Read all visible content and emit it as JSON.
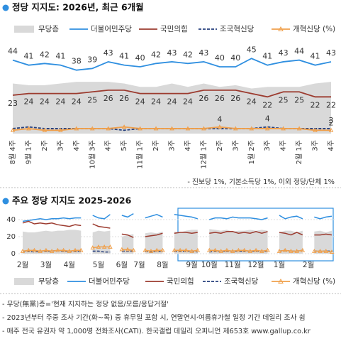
{
  "chart_data": [
    {
      "type": "line",
      "title": "정당 지지도: 2026년, 최근 6개월",
      "categories": [
        "8월 4주",
        "9월 1주",
        "2주",
        "3주",
        "4주",
        "10월 3주",
        "4주",
        "5주",
        "11월 1주",
        "2주",
        "3주",
        "4주",
        "12월 1주",
        "2주",
        "3주",
        "1월 2주",
        "3주",
        "4주",
        "2월 1주",
        "3주",
        "4주"
      ],
      "ylim": [
        0,
        50
      ],
      "series": [
        {
          "name": "무당층",
          "color": "#d9d9d9",
          "style": "area",
          "values": [
            30,
            29,
            29,
            30,
            31,
            31,
            31,
            30,
            28,
            28,
            30,
            28,
            30,
            28,
            29,
            27,
            28,
            28,
            28,
            30,
            31
          ]
        },
        {
          "name": "더불어민주당",
          "color": "#2f8fe0",
          "style": "line",
          "data_labels": true,
          "values": [
            44,
            41,
            42,
            41,
            38,
            39,
            43,
            41,
            40,
            42,
            43,
            42,
            43,
            40,
            40,
            45,
            41,
            43,
            44,
            41,
            43
          ]
        },
        {
          "name": "국민의힘",
          "color": "#9c3b2f",
          "style": "line",
          "data_labels": true,
          "values": [
            23,
            24,
            24,
            24,
            24,
            25,
            26,
            26,
            24,
            24,
            24,
            24,
            26,
            26,
            26,
            24,
            22,
            25,
            25,
            22,
            22
          ]
        },
        {
          "name": "조국혁신당",
          "color": "#263f7c",
          "style": "dashed",
          "values": [
            3,
            4,
            3,
            3,
            3,
            3,
            3,
            2,
            3,
            3,
            3,
            3,
            3,
            3,
            3,
            3,
            4,
            3,
            3,
            3,
            3
          ],
          "value_labels": [
            null,
            null,
            null,
            null,
            null,
            null,
            null,
            null,
            null,
            null,
            null,
            null,
            null,
            null,
            null,
            null,
            "4",
            null,
            null,
            null,
            "3"
          ]
        },
        {
          "name": "개혁신당 (%)",
          "color": "#f0a04b",
          "style": "triangle",
          "values": [
            2,
            3,
            2,
            2,
            3,
            3,
            3,
            4,
            3,
            3,
            3,
            3,
            3,
            4,
            3,
            3,
            3,
            3,
            3,
            2,
            2
          ],
          "value_labels": [
            null,
            null,
            null,
            null,
            null,
            null,
            null,
            null,
            null,
            null,
            null,
            null,
            null,
            "4",
            null,
            null,
            null,
            null,
            null,
            null,
            "2"
          ]
        }
      ],
      "note": "- 진보당 1%, 기본소득당 1%, 이외 정당/단체 1%"
    },
    {
      "type": "line",
      "title": "주요 정당 지지도 2025-2026",
      "categories": [
        "2월",
        null,
        null,
        null,
        "3월",
        null,
        null,
        null,
        "4월",
        null,
        null,
        null,
        null,
        "5월",
        null,
        null,
        null,
        "6월",
        null,
        null,
        "7월",
        null,
        null,
        null,
        "8월",
        null,
        null,
        null,
        null,
        "9월",
        null,
        null,
        "10월",
        null,
        null,
        null,
        "11월",
        null,
        null,
        null,
        "12월",
        null,
        null,
        null,
        "1월",
        null,
        null,
        null,
        null,
        "2월",
        null,
        null,
        null,
        null
      ],
      "ylim": [
        0,
        50
      ],
      "yticks": [
        0,
        20,
        40
      ],
      "grid": true,
      "series": [
        {
          "name": "무당층",
          "color": "#d9d9d9",
          "style": "area",
          "values": [
            26,
            25,
            25,
            26,
            27,
            26,
            27,
            27,
            28,
            28,
            27,
            null,
            25,
            27,
            26,
            27,
            null,
            20,
            22,
            23,
            null,
            24,
            25,
            24,
            26,
            null,
            26,
            25,
            27,
            28,
            28,
            null,
            29,
            28,
            27,
            28,
            26,
            27,
            27,
            28,
            27,
            28,
            27,
            null,
            25,
            27,
            27,
            25,
            27,
            null,
            26,
            27,
            25,
            27
          ]
        },
        {
          "name": "더불어민주당",
          "color": "#2f8fe0",
          "style": "line",
          "values": [
            38,
            39,
            40,
            41,
            40,
            41,
            41,
            42,
            41,
            42,
            42,
            null,
            45,
            42,
            41,
            46,
            null,
            45,
            43,
            47,
            null,
            42,
            44,
            46,
            43,
            null,
            46,
            45,
            44,
            43,
            41,
            null,
            40,
            42,
            42,
            41,
            43,
            42,
            42,
            42,
            41,
            40,
            42,
            null,
            45,
            41,
            43,
            44,
            41,
            null,
            43,
            41,
            43,
            44
          ]
        },
        {
          "name": "국민의힘",
          "color": "#9c3b2f",
          "style": "line",
          "values": [
            36,
            38,
            35,
            36,
            35,
            36,
            34,
            33,
            32,
            34,
            33,
            null,
            35,
            32,
            31,
            30,
            null,
            23,
            22,
            19,
            null,
            20,
            21,
            22,
            24,
            null,
            24,
            25,
            25,
            24,
            25,
            null,
            24,
            25,
            24,
            26,
            26,
            24,
            25,
            24,
            26,
            24,
            26,
            null,
            25,
            24,
            22,
            25,
            22,
            null,
            22,
            22,
            23,
            22
          ]
        },
        {
          "name": "조국혁신당",
          "color": "#263f7c",
          "style": "dashed",
          "values": [
            3,
            3,
            2,
            3,
            3,
            3,
            4,
            3,
            3,
            3,
            3,
            null,
            3,
            3,
            2,
            2,
            null,
            3,
            3,
            3,
            null,
            3,
            2,
            3,
            3,
            null,
            3,
            3,
            3,
            3,
            2,
            null,
            2,
            3,
            3,
            3,
            3,
            3,
            3,
            3,
            3,
            3,
            3,
            null,
            3,
            4,
            3,
            3,
            4,
            null,
            3,
            3,
            3,
            3
          ]
        },
        {
          "name": "개혁신당 (%)",
          "color": "#f0a04b",
          "style": "triangle",
          "values": [
            3,
            4,
            4,
            3,
            4,
            3,
            4,
            4,
            3,
            4,
            4,
            null,
            7,
            8,
            8,
            8,
            null,
            5,
            5,
            4,
            null,
            4,
            3,
            4,
            4,
            null,
            4,
            4,
            4,
            3,
            4,
            null,
            4,
            4,
            3,
            4,
            3,
            4,
            4,
            3,
            4,
            3,
            4,
            null,
            3,
            4,
            3,
            3,
            4,
            null,
            3,
            3,
            3,
            2
          ]
        }
      ],
      "notes": [
        "- 무당(無黨)층='현재 지지하는 정당 없음/모름/응답거절'",
        "- 2023년부터 주중 조사 기간(화~목) 중 휴무일 포함 시, 연말연시·여름휴가철 일정 기간 데일리 조사 쉼",
        "- 매주 전국 유권자 약 1,000명 전화조사(CATI). 한국갤럽 데일리 오피니언 제653호 www.gallup.co.kr"
      ]
    }
  ]
}
